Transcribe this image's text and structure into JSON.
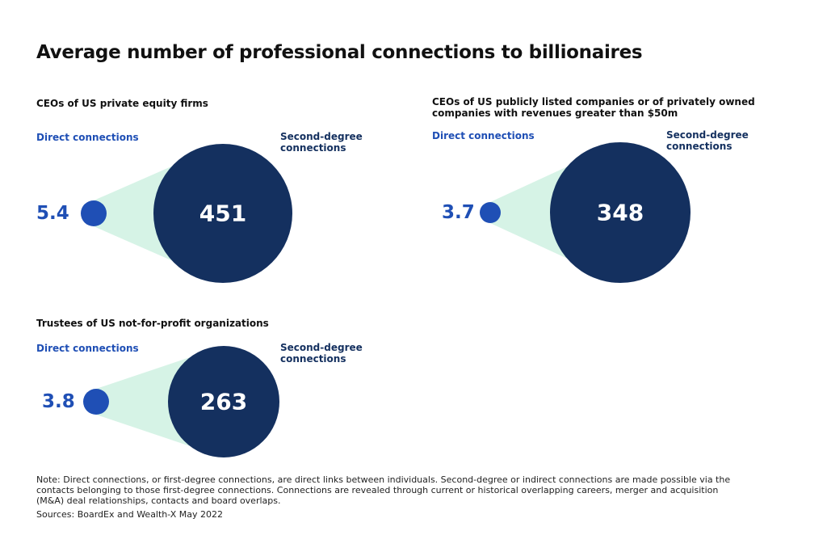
{
  "title": "Average number of professional connections to billionaires",
  "panels": [
    {
      "subtitle": "CEOs of US private equity firms",
      "direct_label": "Direct connections",
      "second_label": "Second-degree connections",
      "direct_value": 5.4,
      "second_value": 451
    },
    {
      "subtitle": "CEOs of US publicly listed companies or of privately owned companies with revenues greater than $50m",
      "direct_label": "Direct connections",
      "second_label": "Second-degree connections",
      "direct_value": 3.7,
      "second_value": 348
    },
    {
      "subtitle": "Trustees of US not-for-profit organizations",
      "direct_label": "Direct connections",
      "second_label": "Second-degree connections",
      "direct_value": 3.8,
      "second_value": 263
    }
  ],
  "note": "Note: Direct connections, or first-degree connections, are direct links between individuals. Second-degree or indirect connections are made possible via the contacts belonging to those first-degree connections. Connections are revealed through current or historical overlapping careers, merger and acquisition (M&A) deal relationships, contacts and board overlaps.",
  "sources": "Sources: BoardEx and Wealth-X May 2022"
}
